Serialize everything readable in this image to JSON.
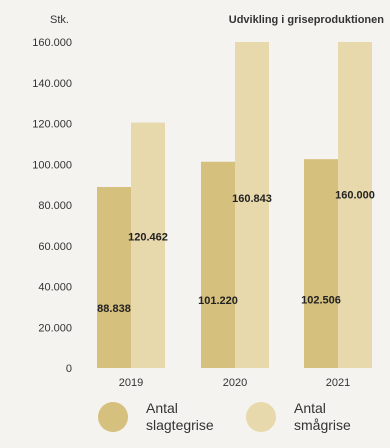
{
  "chart_data": {
    "type": "bar",
    "title": "Udvikling i griseproduktionen",
    "ylabel": "Stk.",
    "xlabel": "",
    "categories": [
      "2019",
      "2020",
      "2021"
    ],
    "ylim": [
      0,
      160000
    ],
    "yticks": [
      0,
      20000,
      40000,
      60000,
      80000,
      100000,
      120000,
      140000,
      160000
    ],
    "ytick_labels": [
      "0",
      "20.000",
      "40.000",
      "60.000",
      "80.000",
      "100.000",
      "120.000",
      "140.000",
      "160.000"
    ],
    "series": [
      {
        "name": "Antal slagtegrise",
        "color": "#d6c07d",
        "values": [
          88838,
          101220,
          102506
        ],
        "labels": [
          "88.838",
          "101.220",
          "102.506"
        ]
      },
      {
        "name": "Antal smågrise",
        "color": "#e8d9ad",
        "values": [
          120462,
          160843,
          160000
        ],
        "labels": [
          "120.462",
          "160.843",
          "160.000"
        ]
      }
    ],
    "grid": false,
    "legend_position": "bottom"
  },
  "legend": [
    {
      "line1": "Antal",
      "line2": "slagtegrise",
      "color": "#d6c07d"
    },
    {
      "line1": "Antal",
      "line2": "smågrise",
      "color": "#e8d9ad"
    }
  ]
}
